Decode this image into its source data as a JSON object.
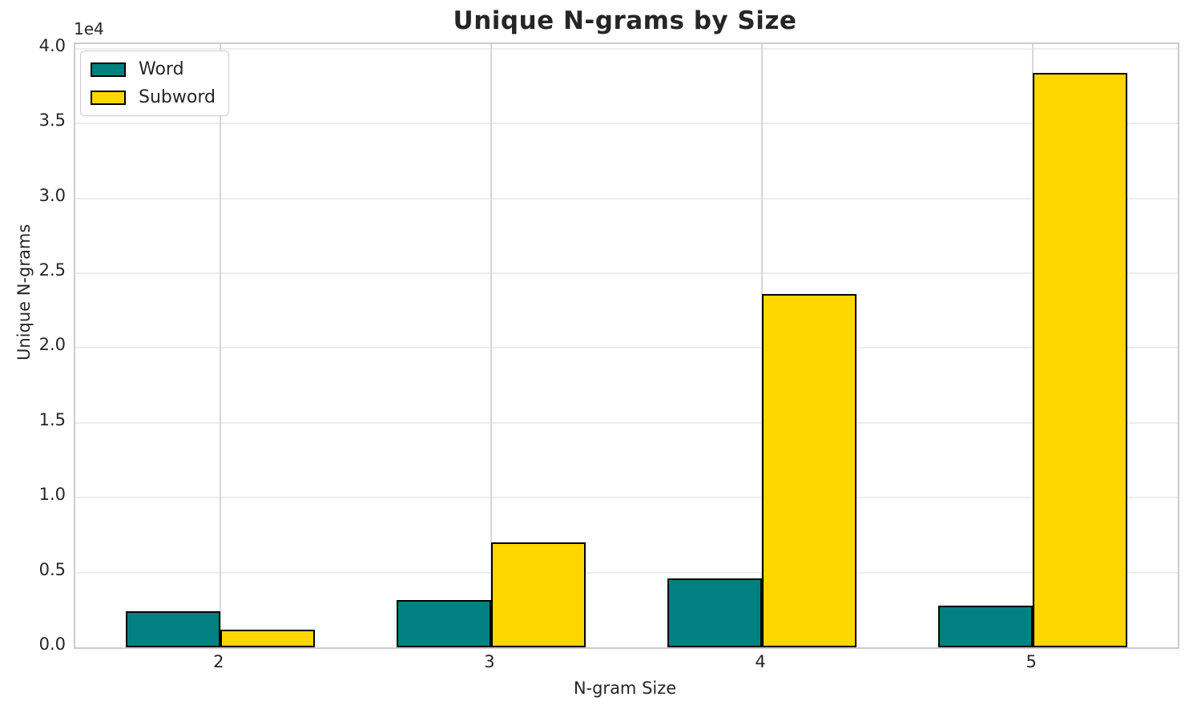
{
  "title": "Unique N-grams by Size",
  "axes": {
    "xlabel": "N-gram Size",
    "ylabel": "Unique N-grams",
    "offset_text": "1e4"
  },
  "legend": {
    "items": [
      {
        "label": "Word",
        "color": "#008080"
      },
      {
        "label": "Subword",
        "color": "#FFD700"
      }
    ]
  },
  "chart_data": {
    "type": "bar",
    "categories": [
      "2",
      "3",
      "4",
      "5"
    ],
    "x": [
      2,
      3,
      4,
      5
    ],
    "series": [
      {
        "name": "Word",
        "color": "#008080",
        "values": [
          2400,
          3150,
          4600,
          2800
        ]
      },
      {
        "name": "Subword",
        "color": "#FFD700",
        "values": [
          1200,
          7000,
          23600,
          38400
        ]
      }
    ],
    "title": "Unique N-grams by Size",
    "xlabel": "N-gram Size",
    "ylabel": "Unique N-grams",
    "ylim": [
      0,
      40320
    ],
    "xlim": [
      1.465,
      5.535
    ],
    "yticks": [
      0,
      5000,
      10000,
      15000,
      20000,
      25000,
      30000,
      35000,
      40000
    ],
    "ytick_labels": [
      "0.0",
      "0.5",
      "1.0",
      "1.5",
      "2.0",
      "2.5",
      "3.0",
      "3.5",
      "4.0"
    ],
    "y_offset_text": "1e4",
    "bar_width_units": 0.35,
    "bar_edge_color": "#000000",
    "grid": true,
    "legend_position": "upper left"
  }
}
